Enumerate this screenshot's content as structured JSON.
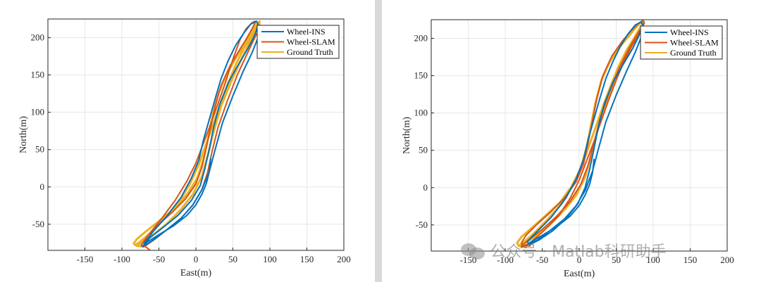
{
  "colors": {
    "wheel_ins": "#0072BD",
    "wheel_slam": "#D95319",
    "ground_truth": "#EDB120"
  },
  "watermark": {
    "text": "公众号 · Matlab科研助手",
    "icon": "wechat-icon"
  },
  "chart_data": [
    {
      "type": "line",
      "title": "",
      "xlabel": "East(m)",
      "ylabel": "North(m)",
      "xlim": [
        -200,
        200
      ],
      "ylim": [
        -85,
        225
      ],
      "xticks": [
        -150,
        -100,
        -50,
        0,
        50,
        100,
        150,
        200
      ],
      "yticks": [
        -50,
        0,
        50,
        100,
        150,
        200
      ],
      "grid": true,
      "legend": "top-right",
      "series": [
        {
          "name": "Wheel-INS",
          "x": [
            20,
            18,
            14,
            8,
            0,
            -12,
            -30,
            -50,
            -66,
            -72,
            -70,
            -62,
            -44,
            -24,
            -6,
            6,
            12,
            18,
            24,
            32,
            44,
            58,
            70,
            78,
            82,
            84,
            82,
            74,
            64,
            54,
            44,
            34,
            26,
            18,
            10,
            4,
            -6,
            -20,
            -40,
            -58,
            -70,
            -68,
            -56,
            -40,
            -20,
            -4,
            8,
            18,
            26,
            36,
            50,
            64,
            76,
            84,
            86
          ],
          "y": [
            38,
            20,
            4,
            -10,
            -24,
            -38,
            -52,
            -64,
            -74,
            -80,
            -77,
            -68,
            -54,
            -38,
            -18,
            2,
            24,
            50,
            80,
            110,
            140,
            165,
            185,
            200,
            210,
            218,
            222,
            218,
            205,
            190,
            170,
            145,
            118,
            90,
            62,
            36,
            12,
            -14,
            -40,
            -60,
            -76,
            -78,
            -70,
            -58,
            -42,
            -24,
            -4,
            20,
            50,
            86,
            122,
            155,
            180,
            200,
            212
          ]
        },
        {
          "name": "Wheel-SLAM",
          "x": [
            -62,
            -68,
            -70,
            -64,
            -50,
            -32,
            -14,
            0,
            8,
            14,
            20,
            26,
            34,
            46,
            58,
            68,
            76,
            80,
            80,
            76,
            68,
            60,
            54,
            48,
            40,
            30,
            20,
            10,
            0,
            -12,
            -28,
            -46,
            -64,
            -74,
            -70,
            -58,
            -40,
            -20,
            -4,
            8,
            16,
            22,
            30,
            42,
            56,
            70,
            82
          ],
          "y": [
            -85,
            -80,
            -74,
            -64,
            -50,
            -34,
            -16,
            4,
            26,
            52,
            80,
            108,
            136,
            162,
            182,
            198,
            212,
            220,
            222,
            220,
            212,
            198,
            182,
            165,
            140,
            112,
            84,
            58,
            32,
            8,
            -18,
            -42,
            -64,
            -78,
            -80,
            -72,
            -58,
            -42,
            -24,
            -4,
            20,
            48,
            80,
            114,
            150,
            180,
            205
          ]
        },
        {
          "name": "Ground Truth",
          "x": [
            -70,
            -80,
            -84,
            -80,
            -68,
            -50,
            -30,
            -12,
            2,
            10,
            16,
            22,
            30,
            42,
            56,
            68,
            76,
            82,
            86,
            86,
            82,
            74,
            64,
            54,
            44,
            34,
            24,
            14,
            4,
            -8,
            -24,
            -44,
            -62,
            -76,
            -82,
            -76,
            -60,
            -40,
            -20,
            -4,
            8,
            16,
            24,
            34,
            48,
            62,
            74,
            82,
            86
          ],
          "y": [
            -80,
            -79,
            -76,
            -70,
            -60,
            -46,
            -30,
            -10,
            12,
            36,
            64,
            94,
            124,
            152,
            176,
            194,
            208,
            218,
            222,
            220,
            214,
            200,
            184,
            164,
            140,
            114,
            86,
            58,
            30,
            4,
            -22,
            -44,
            -62,
            -74,
            -78,
            -76,
            -66,
            -50,
            -30,
            -10,
            14,
            42,
            74,
            108,
            142,
            172,
            196,
            210,
            218
          ]
        }
      ]
    },
    {
      "type": "line",
      "title": "",
      "xlabel": "East(m)",
      "ylabel": "North(m)",
      "xlim": [
        -200,
        200
      ],
      "ylim": [
        -85,
        225
      ],
      "xticks": [
        -150,
        -100,
        -50,
        0,
        50,
        100,
        150,
        200
      ],
      "yticks": [
        -50,
        0,
        50,
        100,
        150,
        200
      ],
      "grid": true,
      "legend": "top-right",
      "series": [
        {
          "name": "Wheel-INS",
          "x": [
            20,
            18,
            14,
            8,
            0,
            -12,
            -30,
            -50,
            -64,
            -70,
            -66,
            -54,
            -36,
            -18,
            -2,
            8,
            14,
            20,
            26,
            34,
            46,
            60,
            72,
            80,
            84,
            86,
            84,
            76,
            66,
            56,
            46,
            36,
            28,
            20,
            12,
            6,
            -4,
            -18,
            -38,
            -56,
            -70,
            -68,
            -56,
            -40,
            -20,
            -4,
            8,
            18,
            26,
            36,
            50,
            64,
            76,
            84,
            88
          ],
          "y": [
            38,
            20,
            4,
            -10,
            -24,
            -38,
            -52,
            -64,
            -72,
            -76,
            -76,
            -70,
            -58,
            -42,
            -22,
            0,
            24,
            52,
            82,
            112,
            142,
            166,
            186,
            202,
            212,
            218,
            222,
            218,
            206,
            190,
            170,
            146,
            120,
            92,
            64,
            38,
            12,
            -14,
            -40,
            -58,
            -72,
            -76,
            -70,
            -58,
            -42,
            -24,
            -4,
            22,
            52,
            88,
            124,
            156,
            182,
            202,
            214
          ]
        },
        {
          "name": "Wheel-SLAM",
          "x": [
            -66,
            -76,
            -78,
            -72,
            -58,
            -40,
            -20,
            -4,
            6,
            12,
            18,
            24,
            32,
            44,
            58,
            70,
            80,
            86,
            88,
            86,
            80,
            70,
            60,
            50,
            40,
            30,
            20,
            10,
            0,
            -12,
            -28,
            -48,
            -66,
            -78,
            -78,
            -68,
            -50,
            -30,
            -12,
            2,
            12,
            20,
            28,
            40,
            54,
            68,
            80,
            88
          ],
          "y": [
            -78,
            -78,
            -74,
            -64,
            -50,
            -34,
            -14,
            8,
            32,
            60,
            90,
            120,
            150,
            176,
            196,
            210,
            220,
            224,
            222,
            216,
            204,
            188,
            168,
            144,
            118,
            90,
            62,
            36,
            10,
            -14,
            -38,
            -58,
            -74,
            -80,
            -78,
            -70,
            -56,
            -38,
            -18,
            4,
            30,
            60,
            92,
            126,
            160,
            188,
            208,
            220
          ]
        },
        {
          "name": "Ground Truth",
          "x": [
            -72,
            -82,
            -84,
            -78,
            -64,
            -46,
            -26,
            -10,
            2,
            10,
            16,
            22,
            30,
            42,
            56,
            68,
            76,
            82,
            86,
            86,
            82,
            74,
            64,
            54,
            44,
            34,
            24,
            14,
            4,
            -8,
            -24,
            -44,
            -62,
            -76,
            -82,
            -76,
            -60,
            -40,
            -20,
            -4,
            8,
            16,
            24,
            34,
            48,
            62,
            74,
            82,
            86
          ],
          "y": [
            -80,
            -78,
            -74,
            -66,
            -54,
            -38,
            -20,
            2,
            26,
            54,
            84,
            114,
            144,
            170,
            190,
            204,
            214,
            220,
            222,
            220,
            214,
            200,
            184,
            164,
            140,
            114,
            86,
            58,
            30,
            4,
            -22,
            -44,
            -62,
            -74,
            -78,
            -76,
            -66,
            -50,
            -30,
            -10,
            14,
            42,
            74,
            108,
            142,
            172,
            196,
            210,
            218
          ]
        }
      ]
    }
  ]
}
